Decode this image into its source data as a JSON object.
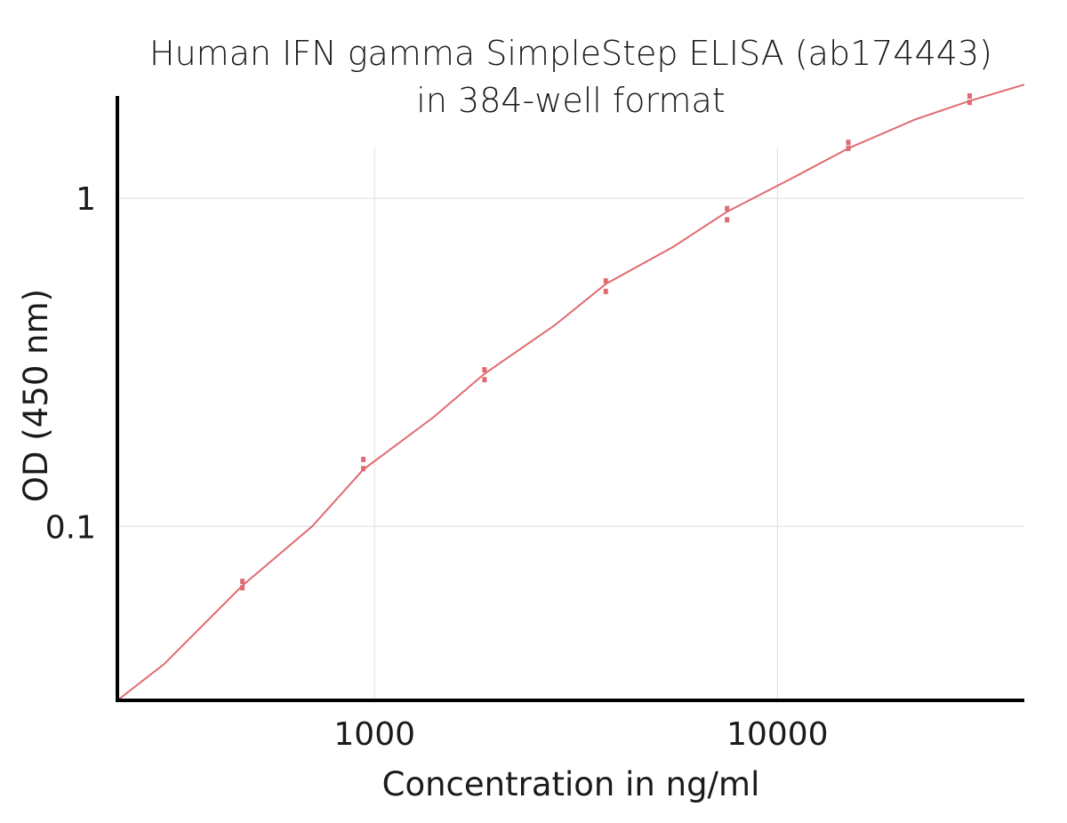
{
  "chart_data": {
    "type": "scatter",
    "title": "Human IFN gamma  SimpleStep ELISA (ab174443)",
    "subtitle": "in 384-well format",
    "xlabel": "Concentration in ng/ml",
    "ylabel": "OD (450 nm)",
    "xscale": "log",
    "yscale": "log",
    "xlim": [
      230,
      41000
    ],
    "ylim": [
      0.0295,
      2.05
    ],
    "x_ticks": [
      1000,
      10000
    ],
    "x_tick_labels": [
      "1000",
      "10000"
    ],
    "y_ticks": [
      0.1,
      1
    ],
    "y_tick_labels": [
      "0.1",
      "1"
    ],
    "grid": true,
    "legend": "none",
    "color": "#e06b72",
    "series": [
      {
        "type": "scatter",
        "x": [
          470,
          470,
          938,
          938,
          1875,
          1875,
          3750,
          3750,
          7500,
          7500,
          15000,
          15000,
          30000,
          30000
        ],
        "y": [
          0.068,
          0.065,
          0.16,
          0.15,
          0.3,
          0.28,
          0.56,
          0.52,
          0.93,
          0.86,
          1.48,
          1.42,
          2.05,
          1.96
        ]
      },
      {
        "type": "line",
        "x": [
          230,
          300,
          470,
          700,
          938,
          1400,
          1875,
          2800,
          3750,
          5500,
          7500,
          11000,
          15000,
          22000,
          30000,
          41000
        ],
        "y": [
          0.0295,
          0.038,
          0.066,
          0.1,
          0.149,
          0.215,
          0.292,
          0.41,
          0.548,
          0.71,
          0.91,
          1.16,
          1.42,
          1.74,
          1.98,
          2.22
        ]
      }
    ]
  }
}
